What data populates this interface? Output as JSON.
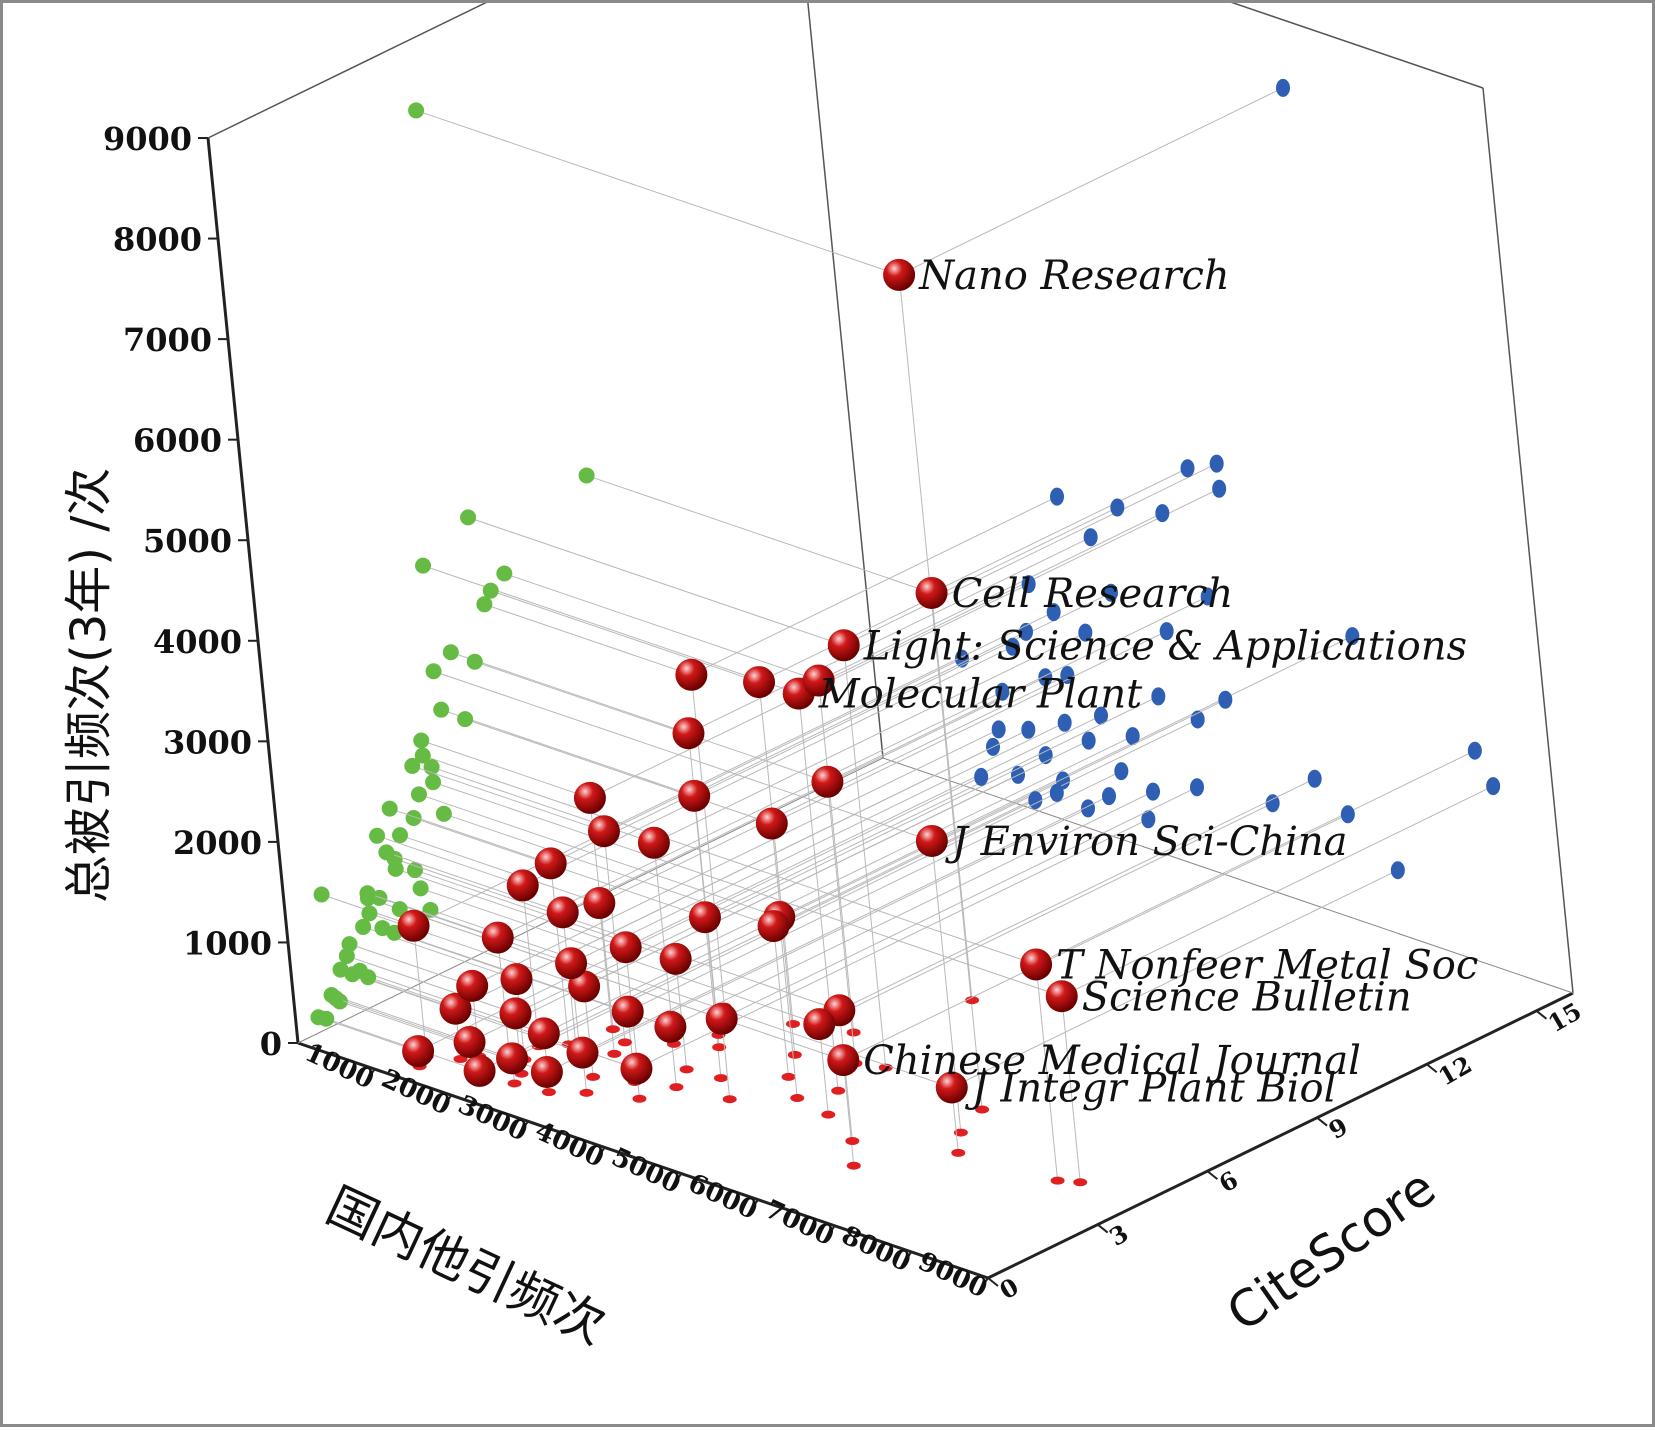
{
  "chart_data": {
    "type": "scatter3d",
    "title": "",
    "xlabel": "国内他引频次",
    "ylabel": "CiteScore",
    "zlabel": "总被引频次(3年) /次",
    "xlim": [
      0,
      9000
    ],
    "ylim": [
      0,
      16
    ],
    "zlim": [
      0,
      9000
    ],
    "x_ticks": [
      "1000",
      "2000",
      "3000",
      "4000",
      "5000",
      "6000",
      "7000",
      "8000",
      "9000"
    ],
    "y_ticks": [
      "0",
      "3",
      "6",
      "9",
      "12",
      "15"
    ],
    "z_ticks": [
      "0",
      "1000",
      "2000",
      "3000",
      "4000",
      "5000",
      "6000",
      "7000",
      "8000",
      "9000"
    ],
    "projections": {
      "xz_wall_color": "#2f5fb3",
      "yz_wall_color": "#66bb44",
      "floor_color": "#e02020"
    },
    "point_color": "#d01818",
    "labeled_points": [
      {
        "name": "Nano Research",
        "x": 6300,
        "y": 5.5,
        "z": 8300
      },
      {
        "name": "Light: Science & Applications",
        "x": 4900,
        "y": 5.8,
        "z": 4200
      },
      {
        "name": "Cell  Research",
        "x": 4500,
        "y": 9.0,
        "z": 4050
      },
      {
        "name": "Molecular Plant",
        "x": 4900,
        "y": 4.5,
        "z": 3950
      },
      {
        "name": "J Environ Sci-China",
        "x": 6500,
        "y": 4.5,
        "z": 2900
      },
      {
        "name": "T Nonfeer Metal Soc",
        "x": 8000,
        "y": 4.0,
        "z": 2150
      },
      {
        "name": "Science Bulletin",
        "x": 8200,
        "y": 4.2,
        "z": 1850
      },
      {
        "name": "Chinese Medical Journal",
        "x": 6200,
        "y": 2.2,
        "z": 1050
      },
      {
        "name": "J Integr Plant Biol",
        "x": 6800,
        "y": 3.8,
        "z": 650
      }
    ],
    "other_points": [
      {
        "x": 1200,
        "y": 1.0,
        "z": 1300
      },
      {
        "x": 1500,
        "y": 1.3,
        "z": 500
      },
      {
        "x": 1800,
        "y": 1.0,
        "z": 300
      },
      {
        "x": 2000,
        "y": 2.0,
        "z": 800
      },
      {
        "x": 2200,
        "y": 1.5,
        "z": 600
      },
      {
        "x": 2500,
        "y": 2.5,
        "z": 1000
      },
      {
        "x": 2400,
        "y": 1.8,
        "z": 400
      },
      {
        "x": 2800,
        "y": 2.2,
        "z": 900
      },
      {
        "x": 3000,
        "y": 3.0,
        "z": 1200
      },
      {
        "x": 3200,
        "y": 2.5,
        "z": 700
      },
      {
        "x": 2600,
        "y": 3.2,
        "z": 1500
      },
      {
        "x": 3400,
        "y": 3.5,
        "z": 1100
      },
      {
        "x": 3600,
        "y": 2.8,
        "z": 600
      },
      {
        "x": 3800,
        "y": 3.6,
        "z": 1600
      },
      {
        "x": 2900,
        "y": 4.2,
        "z": 2000
      },
      {
        "x": 3300,
        "y": 4.6,
        "z": 2500
      },
      {
        "x": 3100,
        "y": 5.0,
        "z": 3000
      },
      {
        "x": 2700,
        "y": 6.0,
        "z": 3300
      },
      {
        "x": 4000,
        "y": 5.2,
        "z": 2300
      },
      {
        "x": 4300,
        "y": 4.4,
        "z": 1500
      },
      {
        "x": 5200,
        "y": 3.6,
        "z": 900
      },
      {
        "x": 5800,
        "y": 3.0,
        "z": 1300
      },
      {
        "x": 2100,
        "y": 3.0,
        "z": 1800
      },
      {
        "x": 2300,
        "y": 2.8,
        "z": 1400
      },
      {
        "x": 3500,
        "y": 6.2,
        "z": 3400
      },
      {
        "x": 4100,
        "y": 6.6,
        "z": 3500
      },
      {
        "x": 4600,
        "y": 5.6,
        "z": 2800
      },
      {
        "x": 1700,
        "y": 2.2,
        "z": 1100
      },
      {
        "x": 1900,
        "y": 2.6,
        "z": 1600
      },
      {
        "x": 2700,
        "y": 1.2,
        "z": 200
      },
      {
        "x": 3000,
        "y": 1.6,
        "z": 400
      },
      {
        "x": 3500,
        "y": 2.0,
        "z": 300
      },
      {
        "x": 4200,
        "y": 3.0,
        "z": 800
      },
      {
        "x": 4700,
        "y": 3.8,
        "z": 1800
      },
      {
        "x": 2200,
        "y": 4.0,
        "z": 2300
      },
      {
        "x": 2500,
        "y": 3.7,
        "z": 2100
      },
      {
        "x": 1600,
        "y": 1.6,
        "z": 700
      },
      {
        "x": 1300,
        "y": 0.6,
        "z": 150
      },
      {
        "x": 2000,
        "y": 0.8,
        "z": 100
      },
      {
        "x": 2300,
        "y": 1.1,
        "z": 250
      }
    ]
  }
}
